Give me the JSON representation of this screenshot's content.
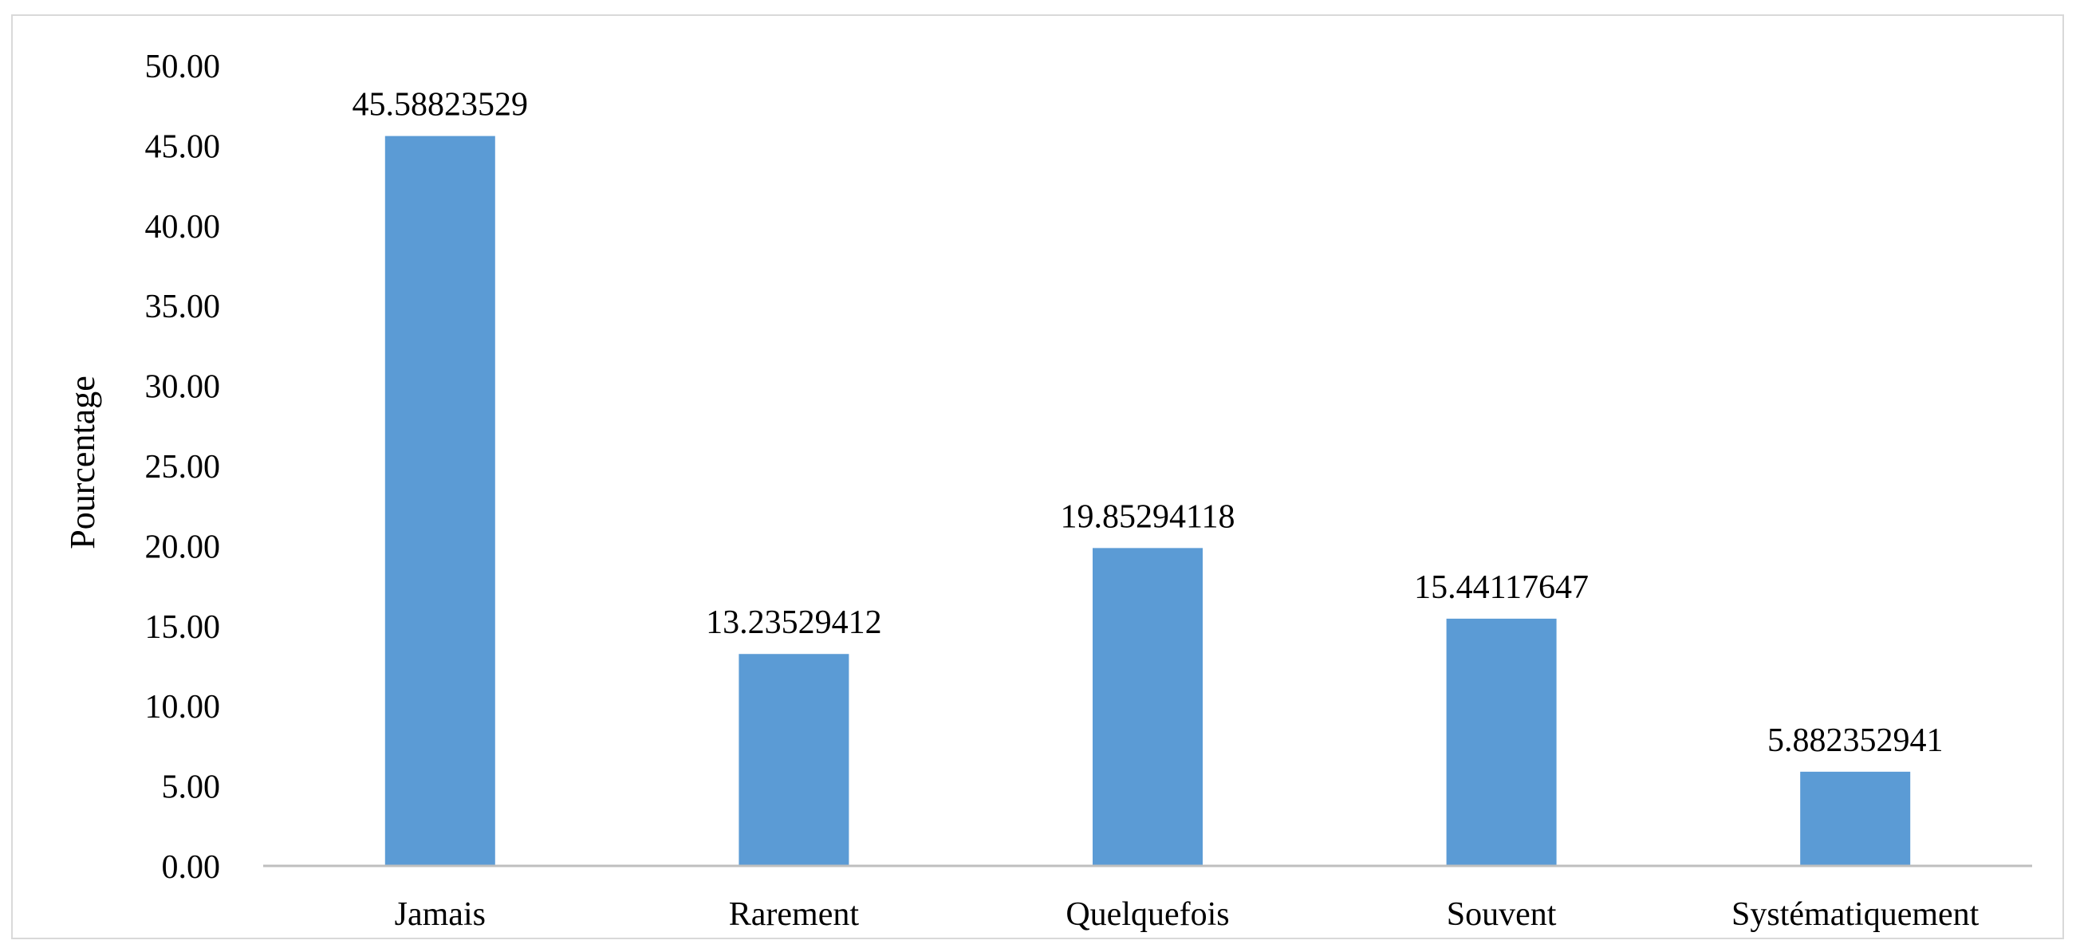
{
  "chart_data": {
    "type": "bar",
    "title": "",
    "xlabel": "",
    "ylabel": "Pourcentage",
    "categories": [
      "Jamais",
      "Rarement",
      "Quelquefois",
      "Souvent",
      "Systématiquement"
    ],
    "values": [
      45.58823529,
      13.23529412,
      19.85294118,
      15.44117647,
      5.882352941
    ],
    "data_labels": [
      "45.58823529",
      "13.23529412",
      "19.85294118",
      "15.44117647",
      "5.882352941"
    ],
    "ylim": [
      0,
      50
    ],
    "yticks": [
      "0.00",
      "5.00",
      "10.00",
      "15.00",
      "20.00",
      "25.00",
      "30.00",
      "35.00",
      "40.00",
      "45.00",
      "50.00"
    ],
    "bar_color": "#5b9bd5",
    "axis_color": "#bfbfbf",
    "grid": false,
    "legend": "none"
  }
}
